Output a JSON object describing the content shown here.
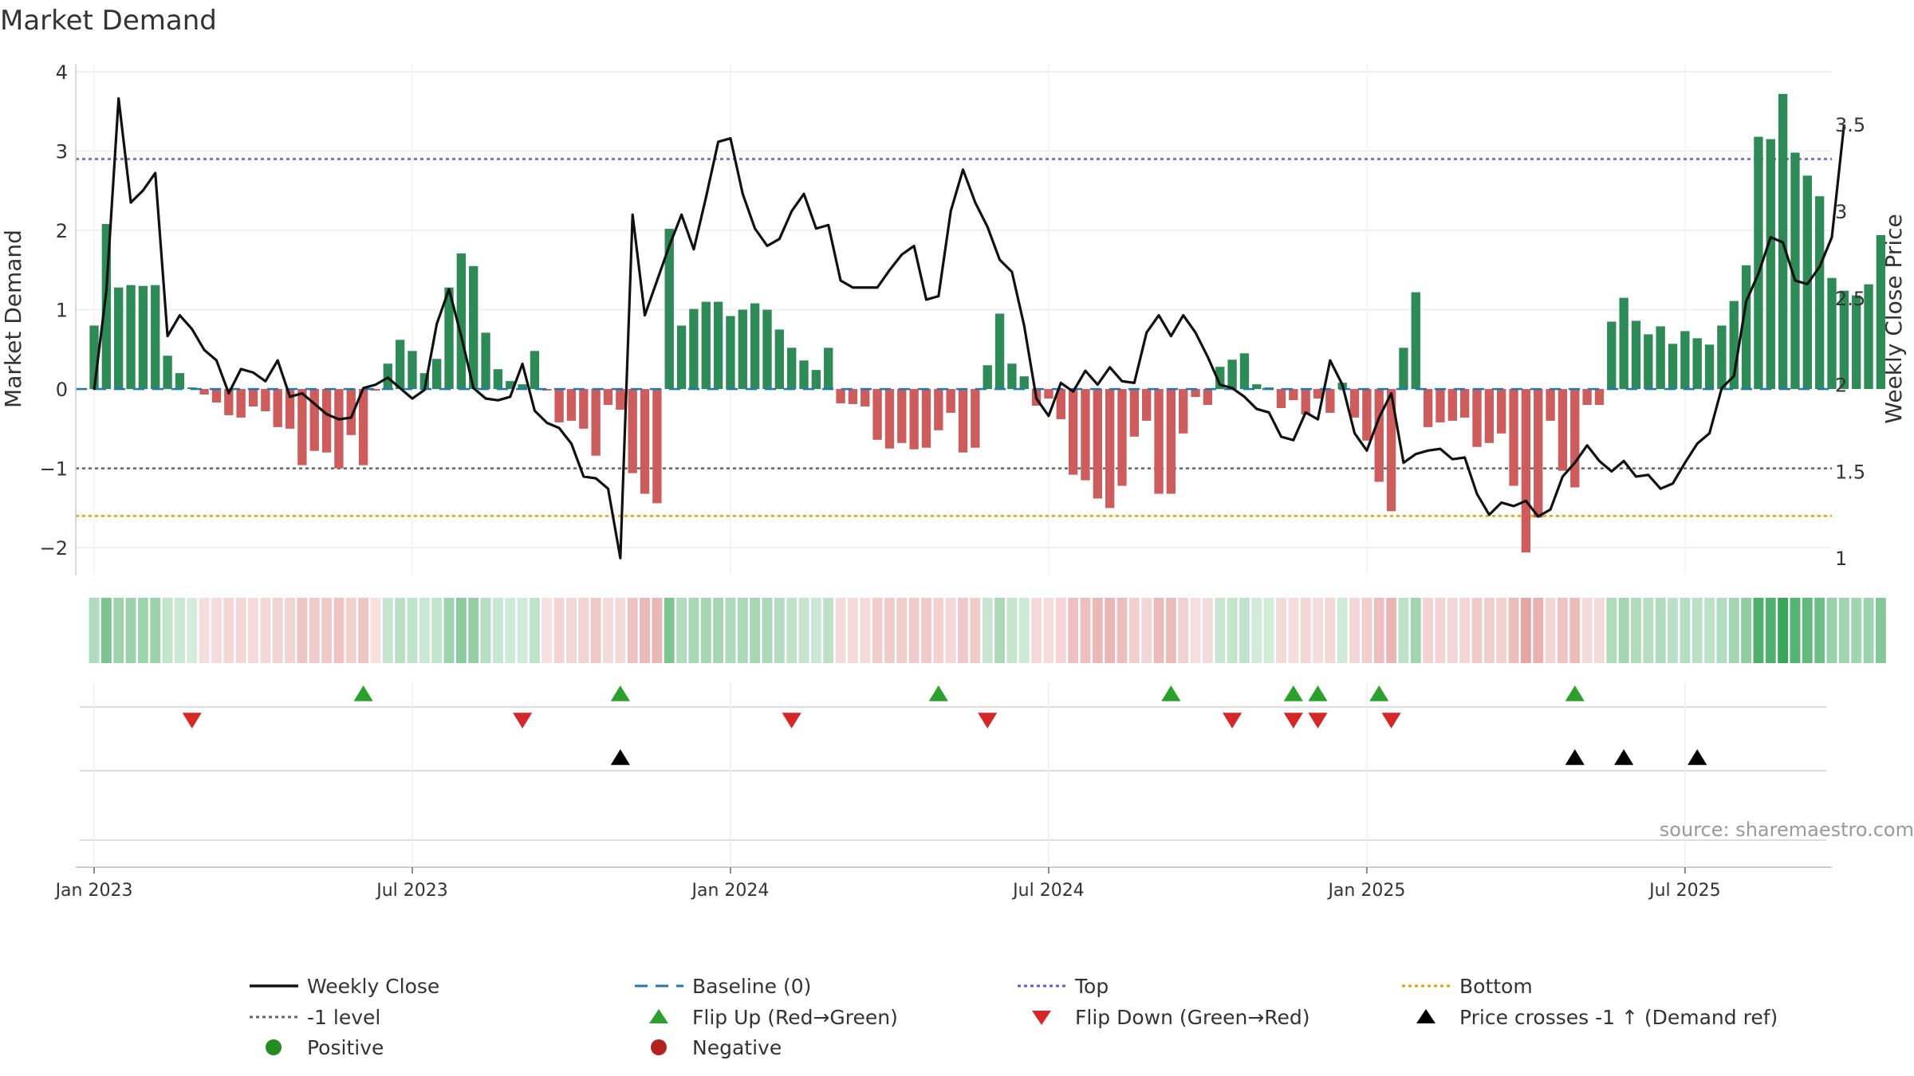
{
  "title": "Market Demand",
  "source": "source: sharemaestro.com",
  "colors": {
    "positive": "#2e8b57",
    "negative": "#cd5c5c",
    "price": "#111111",
    "baseline": "#1f77b4",
    "top": "#6a5acd",
    "minus_one": "#666666",
    "bottom": "#e69f00",
    "flip_up": "#2ca02c",
    "flip_down": "#d62728",
    "cross": "#000000"
  },
  "chart_data": {
    "type": "bar",
    "title": "Market Demand",
    "ylabel": "Market Demand",
    "y2label": "Weekly Close Price",
    "ylim": [
      -2.35,
      4.1
    ],
    "y2lim": [
      0.9,
      3.85
    ],
    "yticks": [
      "4",
      "3",
      "2",
      "1",
      "0",
      "−1",
      "−2"
    ],
    "y2ticks": [
      "3.5",
      "3",
      "2.5",
      "2",
      "1.5",
      "1"
    ],
    "xticks": [
      "Jan 2023",
      "Jul 2023",
      "Jan 2024",
      "Jul 2024",
      "Jan 2025",
      "Jul 2025"
    ],
    "xtick_weeks": [
      0,
      26,
      52,
      78,
      104,
      130
    ],
    "week_start": -1.5,
    "week_end": 142,
    "levels": {
      "baseline": 0,
      "top": 2.9,
      "minus_one": -1,
      "bottom": -1.6
    },
    "demand": [
      0.8,
      2.08,
      1.28,
      1.31,
      1.3,
      1.31,
      0.42,
      0.2,
      0.02,
      -0.07,
      -0.17,
      -0.33,
      -0.36,
      -0.22,
      -0.28,
      -0.48,
      -0.5,
      -0.96,
      -0.78,
      -0.8,
      -1.0,
      -0.58,
      -0.96,
      -0.02,
      0.32,
      0.62,
      0.48,
      0.2,
      0.38,
      1.28,
      1.71,
      1.55,
      0.71,
      0.25,
      0.1,
      0.06,
      0.48,
      -0.02,
      -0.42,
      -0.4,
      -0.5,
      -0.84,
      -0.2,
      -0.26,
      -1.06,
      -1.32,
      -1.44,
      2.02,
      0.8,
      1.01,
      1.1,
      1.1,
      0.92,
      1.0,
      1.08,
      1.0,
      0.75,
      0.52,
      0.36,
      0.24,
      0.52,
      -0.18,
      -0.19,
      -0.22,
      -0.64,
      -0.75,
      -0.68,
      -0.76,
      -0.74,
      -0.52,
      -0.3,
      -0.8,
      -0.74,
      0.3,
      0.95,
      0.32,
      0.16,
      -0.21,
      -0.12,
      -0.38,
      -1.08,
      -1.15,
      -1.38,
      -1.5,
      -1.22,
      -0.6,
      -0.4,
      -1.32,
      -1.32,
      -0.56,
      -0.1,
      -0.2,
      0.28,
      0.37,
      0.45,
      0.06,
      0.02,
      -0.24,
      -0.14,
      -0.32,
      -0.12,
      -0.3,
      0.08,
      -0.36,
      -0.65,
      -1.17,
      -1.54,
      0.52,
      1.22,
      -0.48,
      -0.42,
      -0.4,
      -0.36,
      -0.73,
      -0.68,
      -0.56,
      -1.22,
      -2.06,
      -1.62,
      -0.4,
      -1.03,
      -1.24,
      -0.2,
      -0.2,
      0.85,
      1.15,
      0.86,
      0.69,
      0.79,
      0.57,
      0.73,
      0.64,
      0.56,
      0.8,
      1.11,
      1.56,
      3.18,
      3.15,
      3.72,
      2.98,
      2.69,
      2.43,
      1.4,
      1.24,
      1.18,
      1.32,
      1.94
    ],
    "price": [
      1.97,
      2.54,
      3.65,
      3.05,
      3.12,
      3.22,
      2.28,
      2.4,
      2.32,
      2.2,
      2.14,
      1.95,
      2.09,
      2.07,
      2.02,
      2.14,
      1.93,
      1.95,
      1.89,
      1.83,
      1.8,
      1.81,
      1.98,
      2.0,
      2.04,
      1.98,
      1.92,
      1.97,
      2.35,
      2.55,
      2.28,
      1.98,
      1.92,
      1.91,
      1.93,
      2.12,
      1.85,
      1.78,
      1.75,
      1.66,
      1.47,
      1.46,
      1.4,
      1.0,
      2.98,
      2.4,
      2.6,
      2.8,
      2.98,
      2.78,
      3.08,
      3.4,
      3.42,
      3.1,
      2.9,
      2.8,
      2.84,
      3.0,
      3.1,
      2.9,
      2.92,
      2.6,
      2.56,
      2.56,
      2.56,
      2.66,
      2.75,
      2.8,
      2.49,
      2.51,
      3.0,
      3.24,
      3.05,
      2.91,
      2.72,
      2.65,
      2.34,
      1.92,
      1.82,
      2.01,
      1.96,
      2.08,
      2.0,
      2.1,
      2.02,
      2.01,
      2.3,
      2.4,
      2.28,
      2.4,
      2.3,
      2.16,
      2.0,
      1.98,
      1.93,
      1.86,
      1.84,
      1.7,
      1.68,
      1.84,
      1.8,
      2.14,
      2.0,
      1.72,
      1.62,
      1.81,
      1.95,
      1.55,
      1.6,
      1.62,
      1.63,
      1.57,
      1.58,
      1.37,
      1.25,
      1.32,
      1.3,
      1.33,
      1.24,
      1.28,
      1.47,
      1.55,
      1.65,
      1.56,
      1.5,
      1.56,
      1.47,
      1.48,
      1.4,
      1.43,
      1.55,
      1.66,
      1.72,
      1.98,
      2.05,
      2.48,
      2.64,
      2.85,
      2.82,
      2.6,
      2.58,
      2.68,
      2.85,
      3.5
    ],
    "flip_up_weeks": [
      22,
      43,
      69,
      88,
      98,
      100,
      105,
      121
    ],
    "flip_down_weeks": [
      8,
      35,
      57,
      73,
      93,
      98,
      100,
      106
    ],
    "cross_weeks": [
      43,
      121,
      125,
      131
    ],
    "legend": [
      {
        "label": "Weekly Close",
        "symbol": "line",
        "color": "#111111"
      },
      {
        "label": "Baseline (0)",
        "symbol": "dash",
        "color": "#1f77b4"
      },
      {
        "label": "Top",
        "symbol": "dot",
        "color": "#6a5acd"
      },
      {
        "label": "Bottom",
        "symbol": "dot",
        "color": "#e69f00"
      },
      {
        "label": "-1 level",
        "symbol": "dot",
        "color": "#666666"
      },
      {
        "label": "Flip Up (Red→Green)",
        "symbol": "tri-up",
        "color": "#2ca02c"
      },
      {
        "label": "Flip Down (Green→Red)",
        "symbol": "tri-down",
        "color": "#d62728"
      },
      {
        "label": "Price crosses -1 ↑ (Demand ref)",
        "symbol": "tri-up",
        "color": "#000000"
      },
      {
        "label": "Positive",
        "symbol": "circle",
        "color": "#228b22"
      },
      {
        "label": "Negative",
        "symbol": "circle",
        "color": "#b22222"
      }
    ]
  }
}
